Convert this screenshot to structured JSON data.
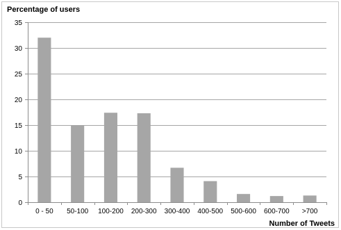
{
  "chart_data": {
    "type": "bar",
    "title": "",
    "xlabel": "Number of Tweets",
    "ylabel": "Percentage of users",
    "categories": [
      "0 - 50",
      "50-100",
      "100-200",
      "200-300",
      "300-400",
      "400-500",
      "500-600",
      "600-700",
      ">700"
    ],
    "values": [
      32,
      15,
      17.4,
      17.3,
      6.7,
      4.1,
      1.6,
      1.2,
      1.3
    ],
    "ylim": [
      0,
      35
    ],
    "yticks": [
      0,
      5,
      10,
      15,
      20,
      25,
      30,
      35
    ],
    "ytick_labels": [
      "0",
      "5",
      "10",
      "15",
      "20",
      "25",
      "30",
      "35"
    ],
    "grid": true,
    "legend": "none",
    "bar_color": "#a6a6a6"
  }
}
